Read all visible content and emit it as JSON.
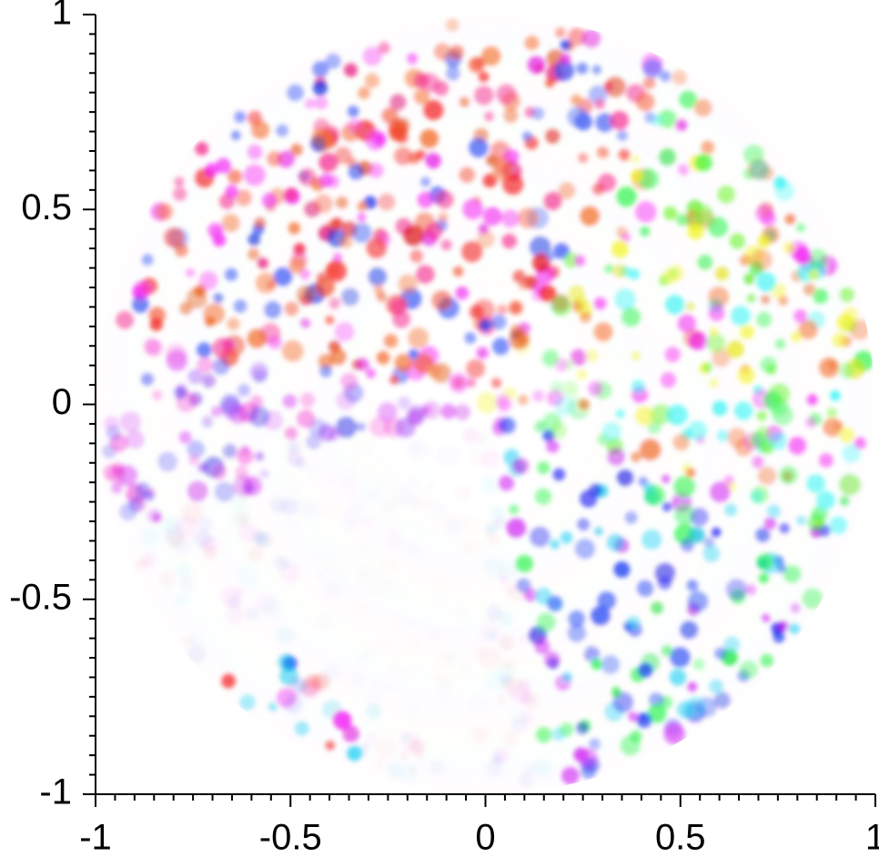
{
  "chart_data": {
    "type": "image",
    "xlim": [
      -1,
      1
    ],
    "ylim": [
      -1,
      1
    ],
    "xticks": [
      -1,
      -0.5,
      0,
      0.5,
      1
    ],
    "yticks": [
      -1,
      -0.5,
      0,
      0.5,
      1
    ]
  }
}
